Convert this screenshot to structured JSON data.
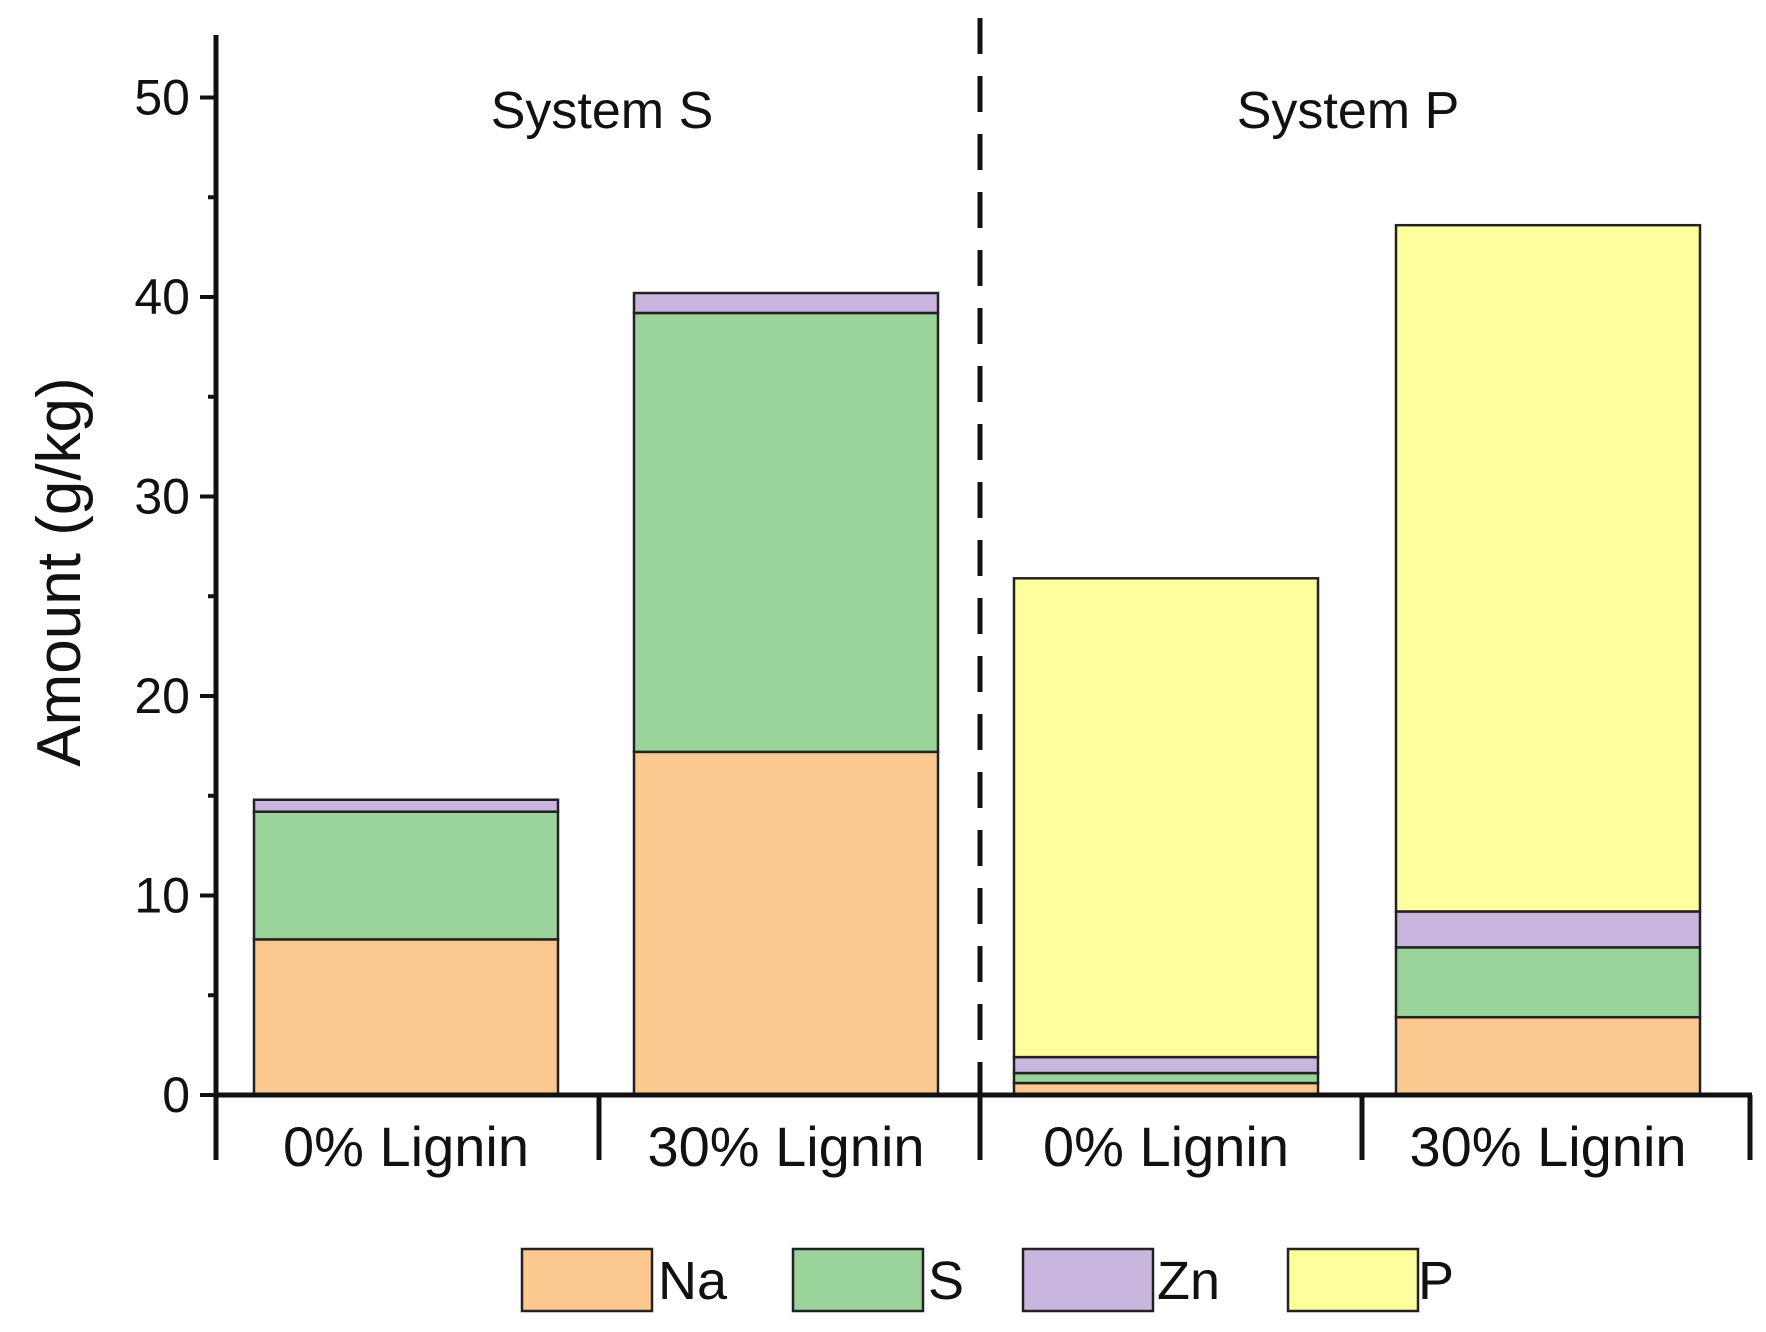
{
  "chart_data": {
    "type": "bar",
    "stacked": true,
    "title": "",
    "xlabel": "",
    "ylabel": "Amount (g/kg)",
    "ylim": [
      0,
      53
    ],
    "yticks": [
      "0",
      "10",
      "20",
      "30",
      "40",
      "50"
    ],
    "groups": [
      {
        "label": "System S",
        "categories": [
          0,
          1
        ]
      },
      {
        "label": "System P",
        "categories": [
          2,
          3
        ]
      }
    ],
    "categories": [
      "0% Lignin",
      "30% Lignin",
      "0% Lignin",
      "30% Lignin"
    ],
    "series": [
      {
        "name": "Na",
        "color": "#fbc98f",
        "values": [
          7.8,
          17.2,
          0.6,
          3.9
        ]
      },
      {
        "name": "S",
        "color": "#9bd49a",
        "values": [
          6.4,
          22.0,
          0.5,
          3.5
        ]
      },
      {
        "name": "Zn",
        "color": "#c8b6de",
        "values": [
          0.6,
          1.0,
          0.8,
          1.8
        ]
      },
      {
        "name": "P",
        "color": "#ffff9e",
        "values": [
          0.0,
          0.0,
          24.0,
          34.4
        ]
      }
    ],
    "legend": {
      "position": "bottom",
      "entries": [
        "Na",
        "S",
        "Zn",
        "P"
      ]
    },
    "grid": false
  }
}
